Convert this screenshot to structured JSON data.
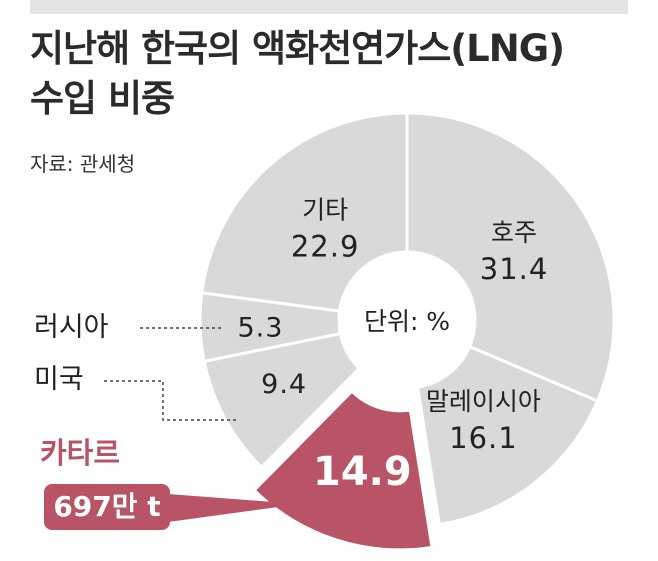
{
  "title": "지난해 한국의 액화천연가스(LNG)\n수입 비중",
  "source": "자료: 관세청",
  "colors": {
    "slice": "#d9d9d9",
    "highlight": "#b85466",
    "text": "#222222",
    "leader": "#444444"
  },
  "chart_data": {
    "type": "pie",
    "style": "donut",
    "title": "지난해 한국의 액화천연가스(LNG) 수입 비중",
    "unit_label": "단위: %",
    "slices": [
      {
        "name": "호주",
        "value": 31.4,
        "value_label": "31.4"
      },
      {
        "name": "말레이시아",
        "value": 16.1,
        "value_label": "16.1"
      },
      {
        "name": "카타르",
        "value": 14.9,
        "value_label": "14.9",
        "highlighted": true
      },
      {
        "name": "미국",
        "value": 9.4,
        "value_label": "9.4"
      },
      {
        "name": "러시아",
        "value": 5.3,
        "value_label": "5.3"
      },
      {
        "name": "기타",
        "value": 22.9,
        "value_label": "22.9"
      }
    ],
    "callout": {
      "slice": "카타르",
      "text": "697만 t"
    }
  }
}
